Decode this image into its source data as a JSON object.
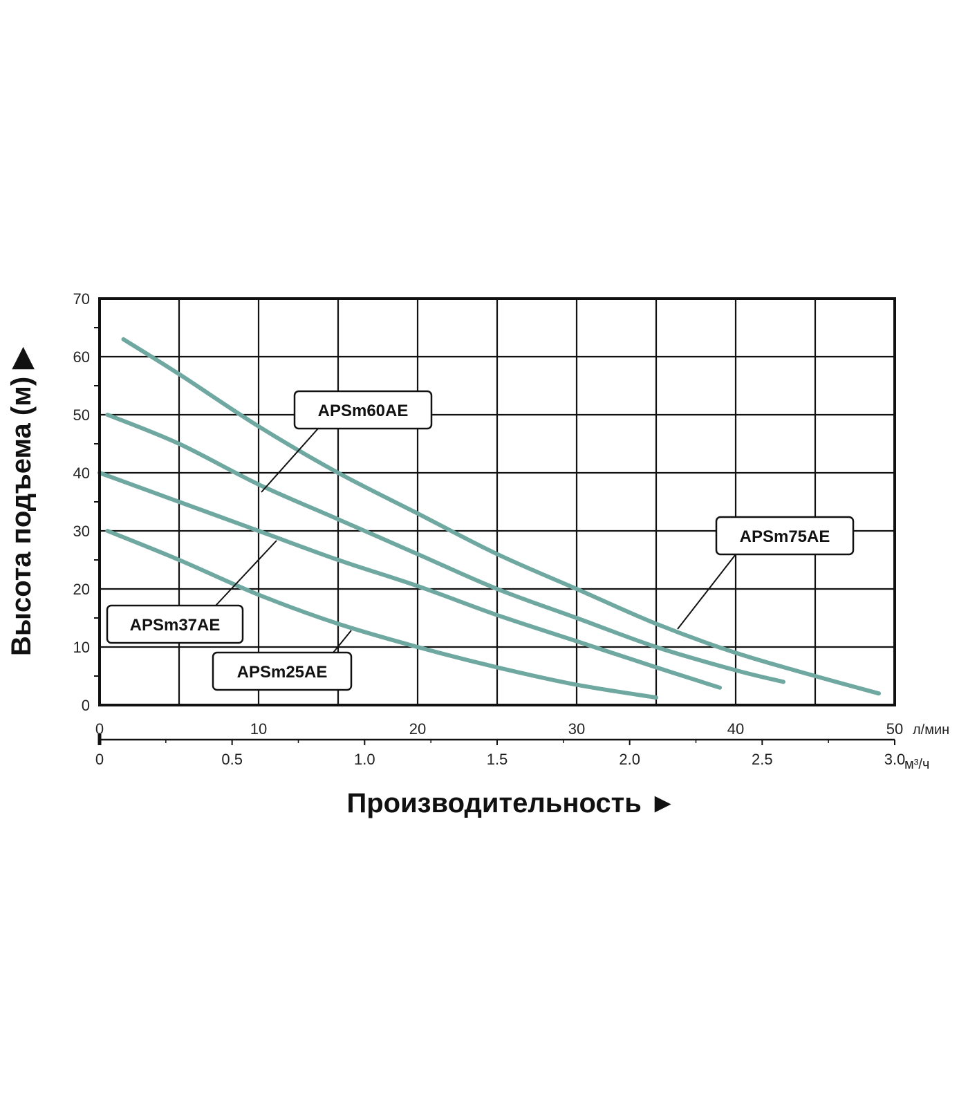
{
  "chart_data": {
    "type": "line",
    "title": "",
    "ylabel": "Высота подъема (м) ▶",
    "xlabel": "Производительность ►",
    "ylim": [
      0,
      70
    ],
    "xlim": [
      0,
      50
    ],
    "y_ticks": [
      "0",
      "10",
      "20",
      "30",
      "40",
      "50",
      "60",
      "70"
    ],
    "x_ticks": [
      "0",
      "10",
      "20",
      "30",
      "40",
      "50"
    ],
    "x_unit": "л/мин",
    "x2_ticks": [
      "0",
      "0.5",
      "1.0",
      "1.5",
      "2.0",
      "2.5",
      "3.0"
    ],
    "x2_unit": "м³/ч",
    "grid": true,
    "line_color": "#6fa8a0",
    "series": [
      {
        "name": "APSm75AE",
        "x": [
          1.5,
          5,
          10,
          15,
          20,
          25,
          30,
          35,
          40,
          45,
          49
        ],
        "y": [
          63,
          57,
          48,
          40,
          33,
          26,
          20,
          14,
          9,
          5,
          2
        ]
      },
      {
        "name": "APSm60AE",
        "x": [
          0.5,
          5,
          10,
          15,
          20,
          25,
          30,
          35,
          40,
          43
        ],
        "y": [
          50,
          45,
          38,
          32,
          26,
          20,
          15,
          10,
          6,
          4
        ]
      },
      {
        "name": "APSm37AE",
        "x": [
          0,
          5,
          10,
          15,
          20,
          25,
          30,
          35,
          39
        ],
        "y": [
          40,
          35,
          30,
          25,
          20.5,
          15.5,
          11,
          6.5,
          3
        ]
      },
      {
        "name": "APSm25AE",
        "x": [
          0.5,
          5,
          10,
          15,
          20,
          25,
          30,
          35
        ],
        "y": [
          30,
          25,
          19,
          14,
          10,
          6.5,
          3.5,
          1.3
        ]
      }
    ]
  }
}
